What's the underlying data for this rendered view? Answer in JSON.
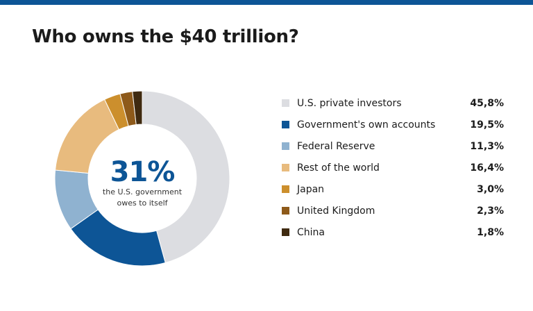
{
  "title": "Who owns the $40 trillion?",
  "center": {
    "value": "31%",
    "note": "the U.S. government owes to itself"
  },
  "chart_data": {
    "type": "pie",
    "donut": true,
    "series": [
      {
        "name": "U.S. private investors",
        "value": 45.8,
        "label": "45,8%",
        "color": "#dcdde1"
      },
      {
        "name": "Government's own accounts",
        "value": 19.5,
        "label": "19,5%",
        "color": "#0d5596"
      },
      {
        "name": "Federal Reserve",
        "value": 11.3,
        "label": "11,3%",
        "color": "#8fb2d0"
      },
      {
        "name": "Rest of the world",
        "value": 16.4,
        "label": "16,4%",
        "color": "#e8bb7e"
      },
      {
        "name": "Japan",
        "value": 3.0,
        "label": "3,0%",
        "color": "#cc8f2d"
      },
      {
        "name": "United Kingdom",
        "value": 2.3,
        "label": "2,3%",
        "color": "#8e5a1a"
      },
      {
        "name": "China",
        "value": 1.8,
        "label": "1,8%",
        "color": "#3f2a10"
      }
    ],
    "legend_position": "right"
  }
}
